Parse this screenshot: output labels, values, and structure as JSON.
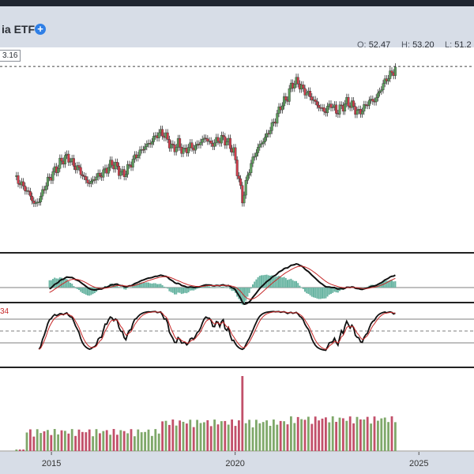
{
  "header": {
    "title": "ia ETF",
    "add_icon": "plus-circle-icon",
    "ohlc": [
      {
        "key": "O:",
        "value": "52.47"
      },
      {
        "key": "H:",
        "value": "53.20"
      },
      {
        "key": "L:",
        "value": "51.2"
      }
    ]
  },
  "price_badge": "3.16",
  "stoch_badge": "34",
  "colors": {
    "up": "#5b9f5b",
    "down": "#d23c4b",
    "volume_up": "#7fa86a",
    "volume_down": "#c2506a",
    "macd_hist": "#6ab5a3",
    "signal": "#c62828"
  },
  "chart_data": [
    {
      "type": "candlestick",
      "x_ticks": [
        "2015",
        "2020",
        "2025"
      ],
      "x_range": [
        2013.6,
        2026.5
      ],
      "y_range": [
        25,
        55
      ],
      "dashed_reference": 53.16,
      "weekly_closes": [
        [
          2014.0,
          34.8
        ],
        [
          2014.2,
          33.6
        ],
        [
          2014.4,
          32.1
        ],
        [
          2014.55,
          30.2
        ],
        [
          2014.7,
          31.5
        ],
        [
          2014.85,
          33.8
        ],
        [
          2015.0,
          35.2
        ],
        [
          2015.15,
          36.4
        ],
        [
          2015.3,
          37.8
        ],
        [
          2015.45,
          38.2
        ],
        [
          2015.6,
          36.9
        ],
        [
          2015.75,
          36.2
        ],
        [
          2015.9,
          34.6
        ],
        [
          2016.05,
          33.8
        ],
        [
          2016.2,
          34.9
        ],
        [
          2016.35,
          35.3
        ],
        [
          2016.5,
          36.2
        ],
        [
          2016.65,
          37.2
        ],
        [
          2016.8,
          36.3
        ],
        [
          2016.95,
          35.2
        ],
        [
          2017.1,
          36.5
        ],
        [
          2017.25,
          38.0
        ],
        [
          2017.4,
          39.0
        ],
        [
          2017.55,
          40.0
        ],
        [
          2017.7,
          40.6
        ],
        [
          2017.85,
          41.8
        ],
        [
          2018.0,
          42.3
        ],
        [
          2018.15,
          41.2
        ],
        [
          2018.3,
          39.5
        ],
        [
          2018.45,
          40.4
        ],
        [
          2018.6,
          39.0
        ],
        [
          2018.75,
          40.0
        ],
        [
          2018.9,
          39.7
        ],
        [
          2019.05,
          40.7
        ],
        [
          2019.2,
          41.4
        ],
        [
          2019.35,
          40.2
        ],
        [
          2019.5,
          40.9
        ],
        [
          2019.65,
          41.3
        ],
        [
          2019.8,
          40.6
        ],
        [
          2019.95,
          39.3
        ],
        [
          2020.1,
          34.5
        ],
        [
          2020.2,
          31.0
        ],
        [
          2020.35,
          35.5
        ],
        [
          2020.5,
          38.2
        ],
        [
          2020.65,
          40.0
        ],
        [
          2020.8,
          41.2
        ],
        [
          2020.95,
          42.8
        ],
        [
          2021.1,
          44.5
        ],
        [
          2021.25,
          46.8
        ],
        [
          2021.4,
          47.8
        ],
        [
          2021.55,
          50.3
        ],
        [
          2021.7,
          50.6
        ],
        [
          2021.85,
          49.2
        ],
        [
          2022.0,
          48.6
        ],
        [
          2022.15,
          47.4
        ],
        [
          2022.3,
          46.4
        ],
        [
          2022.45,
          45.7
        ],
        [
          2022.6,
          47.0
        ],
        [
          2022.75,
          45.7
        ],
        [
          2022.9,
          46.4
        ],
        [
          2023.05,
          47.3
        ],
        [
          2023.2,
          46.6
        ],
        [
          2023.35,
          45.4
        ],
        [
          2023.5,
          46.3
        ],
        [
          2023.65,
          47.5
        ],
        [
          2023.8,
          47.5
        ],
        [
          2023.95,
          49.3
        ],
        [
          2024.1,
          51.0
        ],
        [
          2024.25,
          52.0
        ],
        [
          2024.4,
          53.0
        ]
      ]
    },
    {
      "type": "line",
      "name": "",
      "panel": "macd",
      "x_range": [
        2013.6,
        2026.5
      ]
    },
    {
      "type": "line",
      "name": "",
      "panel": "stochastic",
      "x_range": [
        2013.6,
        2026.5
      ],
      "y_range": [
        0,
        100
      ],
      "levels": [
        80,
        50,
        20
      ]
    },
    {
      "type": "bar",
      "name": "",
      "panel": "volume",
      "x_range": [
        2013.6,
        2026.5
      ]
    }
  ]
}
